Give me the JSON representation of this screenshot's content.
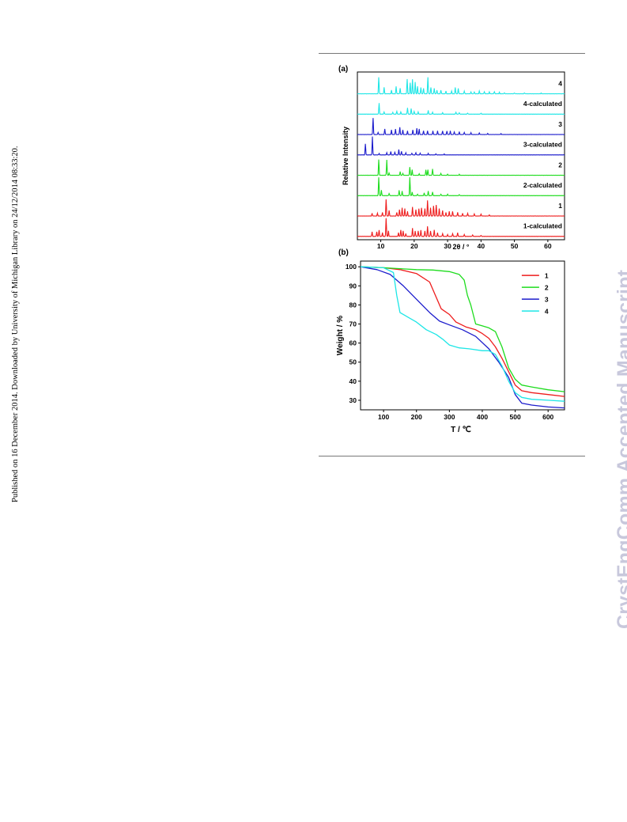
{
  "page": {
    "side_note": "Published on 16 December 2014. Downloaded by University of Michigan Library on 24/12/2014 08:33:20.",
    "watermark": "CrystEngComm Accepted Manuscript"
  },
  "colors": {
    "red": "#ee1c1c",
    "green": "#1edc1e",
    "blue": "#1c1ccc",
    "cyan": "#1ee6e6"
  },
  "chart_data": [
    {
      "panel_label": "(a)",
      "type": "line",
      "xlabel": "2θ / °",
      "ylabel": "Relative Intensity",
      "xlim": [
        3,
        65
      ],
      "xticks": [
        10,
        20,
        30,
        40,
        50,
        60
      ],
      "series": [
        {
          "name": "1-calculated",
          "color": "red",
          "peaks": [
            [
              7.4,
              0.25
            ],
            [
              8.8,
              0.25
            ],
            [
              9.5,
              0.35
            ],
            [
              10.5,
              0.2
            ],
            [
              11.6,
              1.0
            ],
            [
              12.3,
              0.3
            ],
            [
              15.3,
              0.2
            ],
            [
              16.0,
              0.35
            ],
            [
              16.7,
              0.3
            ],
            [
              17.5,
              0.15
            ],
            [
              19.5,
              0.45
            ],
            [
              20.3,
              0.3
            ],
            [
              21.2,
              0.3
            ],
            [
              22.0,
              0.35
            ],
            [
              23.2,
              0.3
            ],
            [
              24.0,
              0.55
            ],
            [
              24.9,
              0.3
            ],
            [
              26.0,
              0.35
            ],
            [
              27.0,
              0.2
            ],
            [
              28.5,
              0.15
            ],
            [
              30.0,
              0.1
            ],
            [
              31.5,
              0.15
            ],
            [
              33.0,
              0.2
            ],
            [
              35.0,
              0.1
            ],
            [
              37.5,
              0.08
            ],
            [
              40.0,
              0.06
            ]
          ]
        },
        {
          "name": "1",
          "color": "red",
          "peaks": [
            [
              7.4,
              0.15
            ],
            [
              9.0,
              0.15
            ],
            [
              10.5,
              0.2
            ],
            [
              11.6,
              0.9
            ],
            [
              12.5,
              0.3
            ],
            [
              14.8,
              0.2
            ],
            [
              15.6,
              0.35
            ],
            [
              16.4,
              0.45
            ],
            [
              17.2,
              0.4
            ],
            [
              18.0,
              0.25
            ],
            [
              19.5,
              0.5
            ],
            [
              20.5,
              0.35
            ],
            [
              21.4,
              0.4
            ],
            [
              22.2,
              0.45
            ],
            [
              23.2,
              0.4
            ],
            [
              24.0,
              0.85
            ],
            [
              24.9,
              0.45
            ],
            [
              25.8,
              0.55
            ],
            [
              26.6,
              0.6
            ],
            [
              27.5,
              0.4
            ],
            [
              28.5,
              0.3
            ],
            [
              29.5,
              0.2
            ],
            [
              30.5,
              0.25
            ],
            [
              31.5,
              0.25
            ],
            [
              33.0,
              0.2
            ],
            [
              34.5,
              0.15
            ],
            [
              36.0,
              0.15
            ],
            [
              38.0,
              0.12
            ],
            [
              40.0,
              0.1
            ],
            [
              42.5,
              0.06
            ]
          ]
        },
        {
          "name": "2-calculated",
          "color": "green",
          "peaks": [
            [
              9.4,
              1.0
            ],
            [
              10.2,
              0.3
            ],
            [
              12.5,
              0.12
            ],
            [
              15.5,
              0.3
            ],
            [
              16.4,
              0.25
            ],
            [
              18.7,
              1.0
            ],
            [
              19.4,
              0.2
            ],
            [
              21.0,
              0.08
            ],
            [
              23.0,
              0.15
            ],
            [
              24.2,
              0.25
            ],
            [
              25.5,
              0.2
            ],
            [
              28.0,
              0.08
            ],
            [
              30.0,
              0.08
            ],
            [
              33.5,
              0.06
            ]
          ]
        },
        {
          "name": "2",
          "color": "green",
          "peaks": [
            [
              9.4,
              0.85
            ],
            [
              11.8,
              0.85
            ],
            [
              12.5,
              0.12
            ],
            [
              15.8,
              0.2
            ],
            [
              16.6,
              0.1
            ],
            [
              18.7,
              0.45
            ],
            [
              19.4,
              0.3
            ],
            [
              21.5,
              0.08
            ],
            [
              23.5,
              0.3
            ],
            [
              24.1,
              0.3
            ],
            [
              25.5,
              0.35
            ],
            [
              28.0,
              0.1
            ],
            [
              30.0,
              0.06
            ],
            [
              33.5,
              0.05
            ]
          ]
        },
        {
          "name": "3-calculated",
          "color": "blue",
          "peaks": [
            [
              5.4,
              0.6
            ],
            [
              7.5,
              1.0
            ],
            [
              9.5,
              0.08
            ],
            [
              11.8,
              0.12
            ],
            [
              13.0,
              0.18
            ],
            [
              14.2,
              0.15
            ],
            [
              15.4,
              0.3
            ],
            [
              16.2,
              0.2
            ],
            [
              17.5,
              0.12
            ],
            [
              19.3,
              0.1
            ],
            [
              20.5,
              0.12
            ],
            [
              21.8,
              0.1
            ],
            [
              24.2,
              0.08
            ],
            [
              26.5,
              0.06
            ],
            [
              29.0,
              0.05
            ]
          ]
        },
        {
          "name": "3",
          "color": "blue",
          "peaks": [
            [
              7.7,
              0.9
            ],
            [
              9.2,
              0.12
            ],
            [
              11.2,
              0.3
            ],
            [
              13.2,
              0.25
            ],
            [
              14.4,
              0.3
            ],
            [
              15.7,
              0.4
            ],
            [
              16.6,
              0.25
            ],
            [
              18.0,
              0.2
            ],
            [
              19.6,
              0.25
            ],
            [
              20.8,
              0.35
            ],
            [
              21.5,
              0.3
            ],
            [
              22.8,
              0.2
            ],
            [
              24.0,
              0.2
            ],
            [
              25.6,
              0.2
            ],
            [
              27.0,
              0.2
            ],
            [
              28.5,
              0.2
            ],
            [
              29.8,
              0.2
            ],
            [
              30.8,
              0.2
            ],
            [
              32.0,
              0.15
            ],
            [
              33.5,
              0.15
            ],
            [
              35.0,
              0.12
            ],
            [
              37.0,
              0.1
            ],
            [
              39.5,
              0.08
            ],
            [
              42.0,
              0.06
            ],
            [
              46.0,
              0.05
            ]
          ]
        },
        {
          "name": "4-calculated",
          "color": "cyan",
          "peaks": [
            [
              9.5,
              0.6
            ],
            [
              11.0,
              0.12
            ],
            [
              13.6,
              0.1
            ],
            [
              14.8,
              0.15
            ],
            [
              16.0,
              0.12
            ],
            [
              18.0,
              0.35
            ],
            [
              19.1,
              0.3
            ],
            [
              20.0,
              0.15
            ],
            [
              21.2,
              0.12
            ],
            [
              24.2,
              0.2
            ],
            [
              25.5,
              0.1
            ],
            [
              28.5,
              0.08
            ],
            [
              32.5,
              0.1
            ],
            [
              33.5,
              0.08
            ],
            [
              36.0,
              0.06
            ],
            [
              40.0,
              0.05
            ]
          ]
        },
        {
          "name": "4",
          "color": "cyan",
          "peaks": [
            [
              9.4,
              0.9
            ],
            [
              11.0,
              0.35
            ],
            [
              13.2,
              0.2
            ],
            [
              14.6,
              0.4
            ],
            [
              15.8,
              0.3
            ],
            [
              17.9,
              0.8
            ],
            [
              18.8,
              0.6
            ],
            [
              19.5,
              0.8
            ],
            [
              20.3,
              0.65
            ],
            [
              21.0,
              0.4
            ],
            [
              22.0,
              0.35
            ],
            [
              22.8,
              0.3
            ],
            [
              24.1,
              0.9
            ],
            [
              25.0,
              0.35
            ],
            [
              26.0,
              0.3
            ],
            [
              26.8,
              0.2
            ],
            [
              28.0,
              0.2
            ],
            [
              29.5,
              0.15
            ],
            [
              31.2,
              0.15
            ],
            [
              32.3,
              0.35
            ],
            [
              33.2,
              0.3
            ],
            [
              35.0,
              0.15
            ],
            [
              37.0,
              0.1
            ],
            [
              38.0,
              0.1
            ],
            [
              39.5,
              0.15
            ],
            [
              41.0,
              0.12
            ],
            [
              42.5,
              0.1
            ],
            [
              44.0,
              0.12
            ],
            [
              45.5,
              0.08
            ],
            [
              47.0,
              0.06
            ],
            [
              50.0,
              0.05
            ],
            [
              53.0,
              0.05
            ],
            [
              58.0,
              0.04
            ]
          ]
        }
      ]
    },
    {
      "panel_label": "(b)",
      "type": "line",
      "xlabel": "T / ℃",
      "ylabel": "Weight / %",
      "xlim": [
        30,
        650
      ],
      "ylim": [
        25,
        103
      ],
      "xticks": [
        100,
        200,
        300,
        400,
        500,
        600
      ],
      "yticks": [
        30,
        40,
        50,
        60,
        70,
        80,
        90,
        100
      ],
      "legend_position": "top-right",
      "series": [
        {
          "name": "1",
          "color": "red",
          "x": [
            30,
            100,
            150,
            200,
            240,
            260,
            275,
            300,
            320,
            350,
            380,
            400,
            420,
            440,
            460,
            480,
            500,
            520,
            550,
            600,
            650
          ],
          "y": [
            100,
            99.5,
            98.5,
            96.5,
            92,
            84,
            78,
            75,
            71,
            68.5,
            67,
            65,
            62.5,
            58,
            52,
            45,
            38,
            35,
            34,
            33,
            32
          ]
        },
        {
          "name": "2",
          "color": "green",
          "x": [
            30,
            100,
            150,
            200,
            250,
            300,
            330,
            345,
            355,
            365,
            380,
            400,
            420,
            440,
            460,
            480,
            500,
            520,
            550,
            600,
            650
          ],
          "y": [
            100,
            99.5,
            99,
            98.5,
            98.3,
            97.5,
            96,
            93,
            85,
            80,
            70,
            69,
            68,
            66,
            58,
            47,
            41,
            38,
            37,
            35.5,
            34.5
          ]
        },
        {
          "name": "3",
          "color": "blue",
          "x": [
            30,
            80,
            120,
            160,
            200,
            240,
            270,
            300,
            340,
            380,
            420,
            450,
            480,
            500,
            520,
            550,
            600,
            650
          ],
          "y": [
            100,
            98.5,
            96,
            90,
            83,
            76,
            71.5,
            69.5,
            67,
            63.5,
            57,
            50,
            42,
            33,
            28.5,
            27.5,
            26.5,
            26
          ]
        },
        {
          "name": "4",
          "color": "cyan",
          "x": [
            30,
            100,
            130,
            140,
            150,
            180,
            200,
            230,
            260,
            280,
            300,
            330,
            360,
            400,
            420,
            440,
            460,
            480,
            500,
            520,
            550,
            600,
            650
          ],
          "y": [
            100,
            99.5,
            97,
            85,
            76,
            73,
            71,
            67,
            64.5,
            62,
            59,
            57.5,
            57,
            56,
            56,
            54,
            48,
            40,
            34,
            31.5,
            30.5,
            30,
            29.5
          ]
        }
      ]
    }
  ]
}
